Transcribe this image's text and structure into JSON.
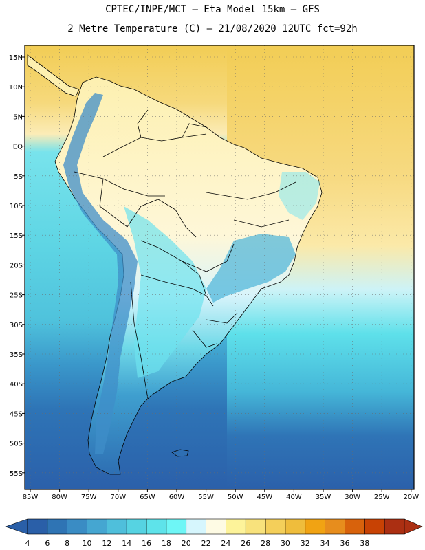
{
  "title_line1": "CPTEC/INPE/MCT –  Eta Model 15km – GFS",
  "title_line2": "2 Metre Temperature (C) – 21/08/2020 12UTC fct=92h",
  "lat_labels": [
    "15N",
    "10N",
    "5N",
    "EQ",
    "5S",
    "10S",
    "15S",
    "20S",
    "25S",
    "30S",
    "35S",
    "40S",
    "45S",
    "50S",
    "55S"
  ],
  "lon_labels": [
    "85W",
    "80W",
    "75W",
    "70W",
    "65W",
    "60W",
    "55W",
    "50W",
    "45W",
    "40W",
    "35W",
    "30W",
    "25W",
    "20W"
  ],
  "colorbar": {
    "labels": [
      "4",
      "6",
      "8",
      "10",
      "12",
      "14",
      "16",
      "18",
      "20",
      "22",
      "24",
      "26",
      "28",
      "30",
      "32",
      "34",
      "36",
      "38"
    ],
    "colors": [
      "#2a5fa8",
      "#2f74b4",
      "#3a8cc4",
      "#45a6d1",
      "#4fbfdb",
      "#56d3e2",
      "#5ee3ea",
      "#6ef6f6",
      "#d6f6fd",
      "#fefbe4",
      "#fdf39a",
      "#f8e27c",
      "#f4cf5a",
      "#efbd3c",
      "#f1a313",
      "#e78d1d",
      "#d8620c",
      "#c84204",
      "#ab2f12"
    ],
    "low_color": "#2a5fa8",
    "high_color": "#ab2f12"
  },
  "map": {
    "ocean_north": "#f5d77a",
    "ocean_south": "#2f6fb3",
    "land": "#fdf3c0",
    "andes": "#3f8dc8",
    "border_color": "#000000",
    "grid": "dotted"
  }
}
